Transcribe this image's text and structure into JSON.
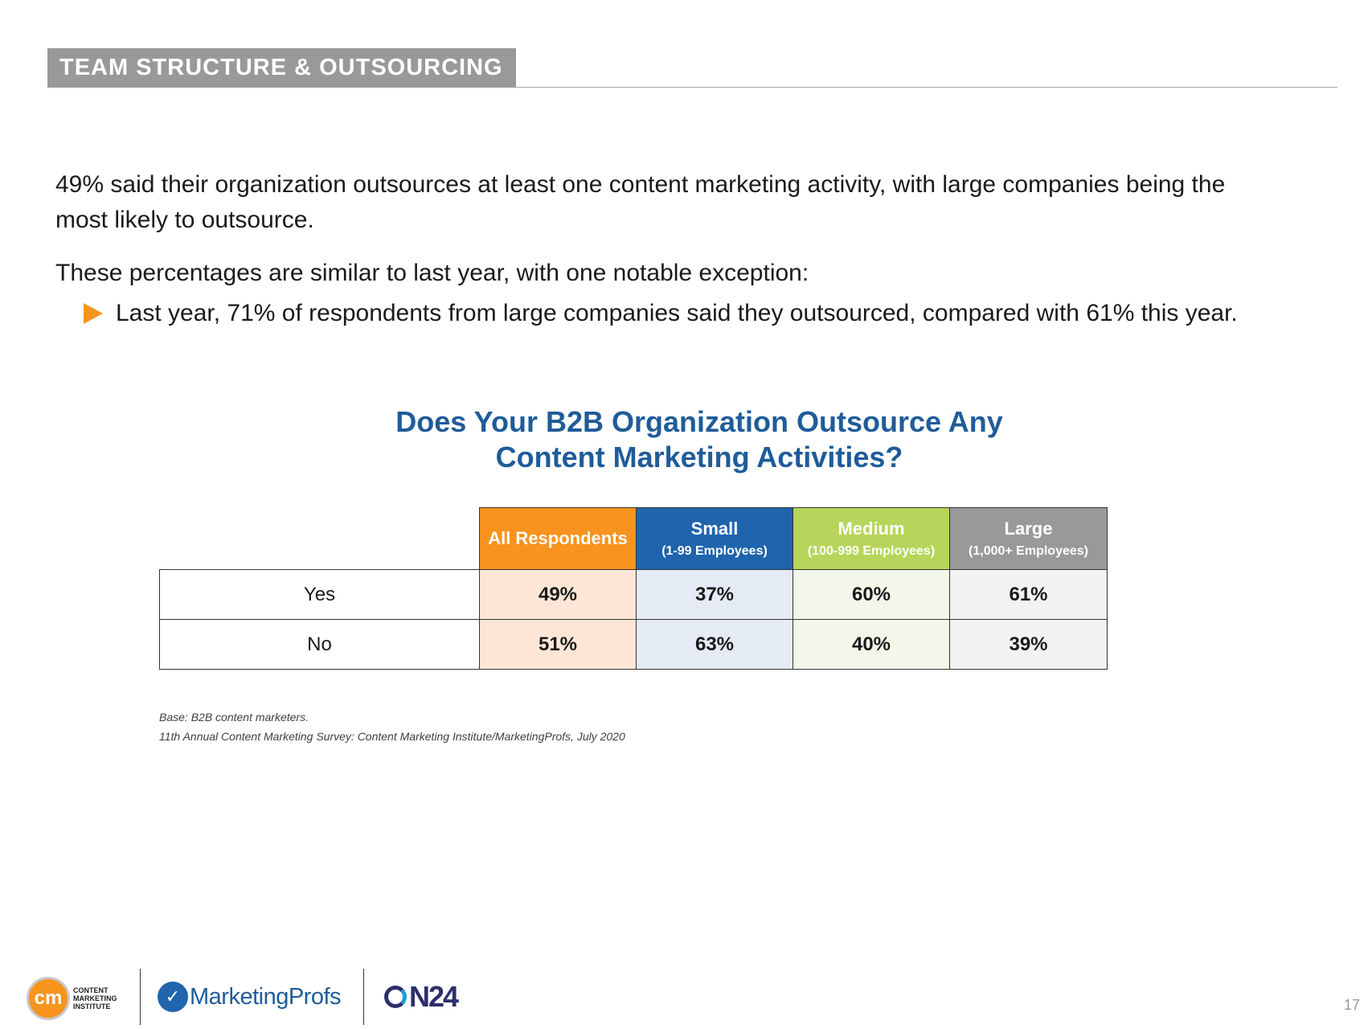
{
  "header": {
    "section_title": "TEAM STRUCTURE & OUTSOURCING"
  },
  "body": {
    "paragraph1": "49% said their organization outsources at least one content marketing activity, with large companies being the most likely to outsource.",
    "paragraph2": "These percentages are similar to last year, with one notable exception:",
    "bullet1": "Last year, 71% of respondents from large companies said they outsourced, compared with 61% this year."
  },
  "chart_data": {
    "type": "table",
    "title_line1": "Does Your B2B Organization Outsource Any",
    "title_line2": "Content Marketing Activities?",
    "columns": [
      {
        "name": "All Respondents",
        "sub": "",
        "color": "#f7931e"
      },
      {
        "name": "Small",
        "sub": "(1-99 Employees)",
        "color": "#1f64ad"
      },
      {
        "name": "Medium",
        "sub": "(100-999 Employees)",
        "color": "#b6d55a"
      },
      {
        "name": "Large",
        "sub": "(1,000+ Employees)",
        "color": "#999999"
      }
    ],
    "rows": [
      {
        "label": "Yes",
        "values": [
          "49%",
          "37%",
          "60%",
          "61%"
        ]
      },
      {
        "label": "No",
        "values": [
          "51%",
          "63%",
          "40%",
          "39%"
        ]
      }
    ]
  },
  "notes": {
    "base": "Base: B2B content marketers.",
    "source": "11th Annual Content Marketing Survey: Content Marketing Institute/MarketingProfs, July 2020"
  },
  "footer": {
    "cmi_mark": "cm",
    "cmi_text": "CONTENT MARKETING INSTITUTE",
    "mp_text": "MarketingProfs",
    "on24_text": "N24",
    "page_number": "17"
  }
}
